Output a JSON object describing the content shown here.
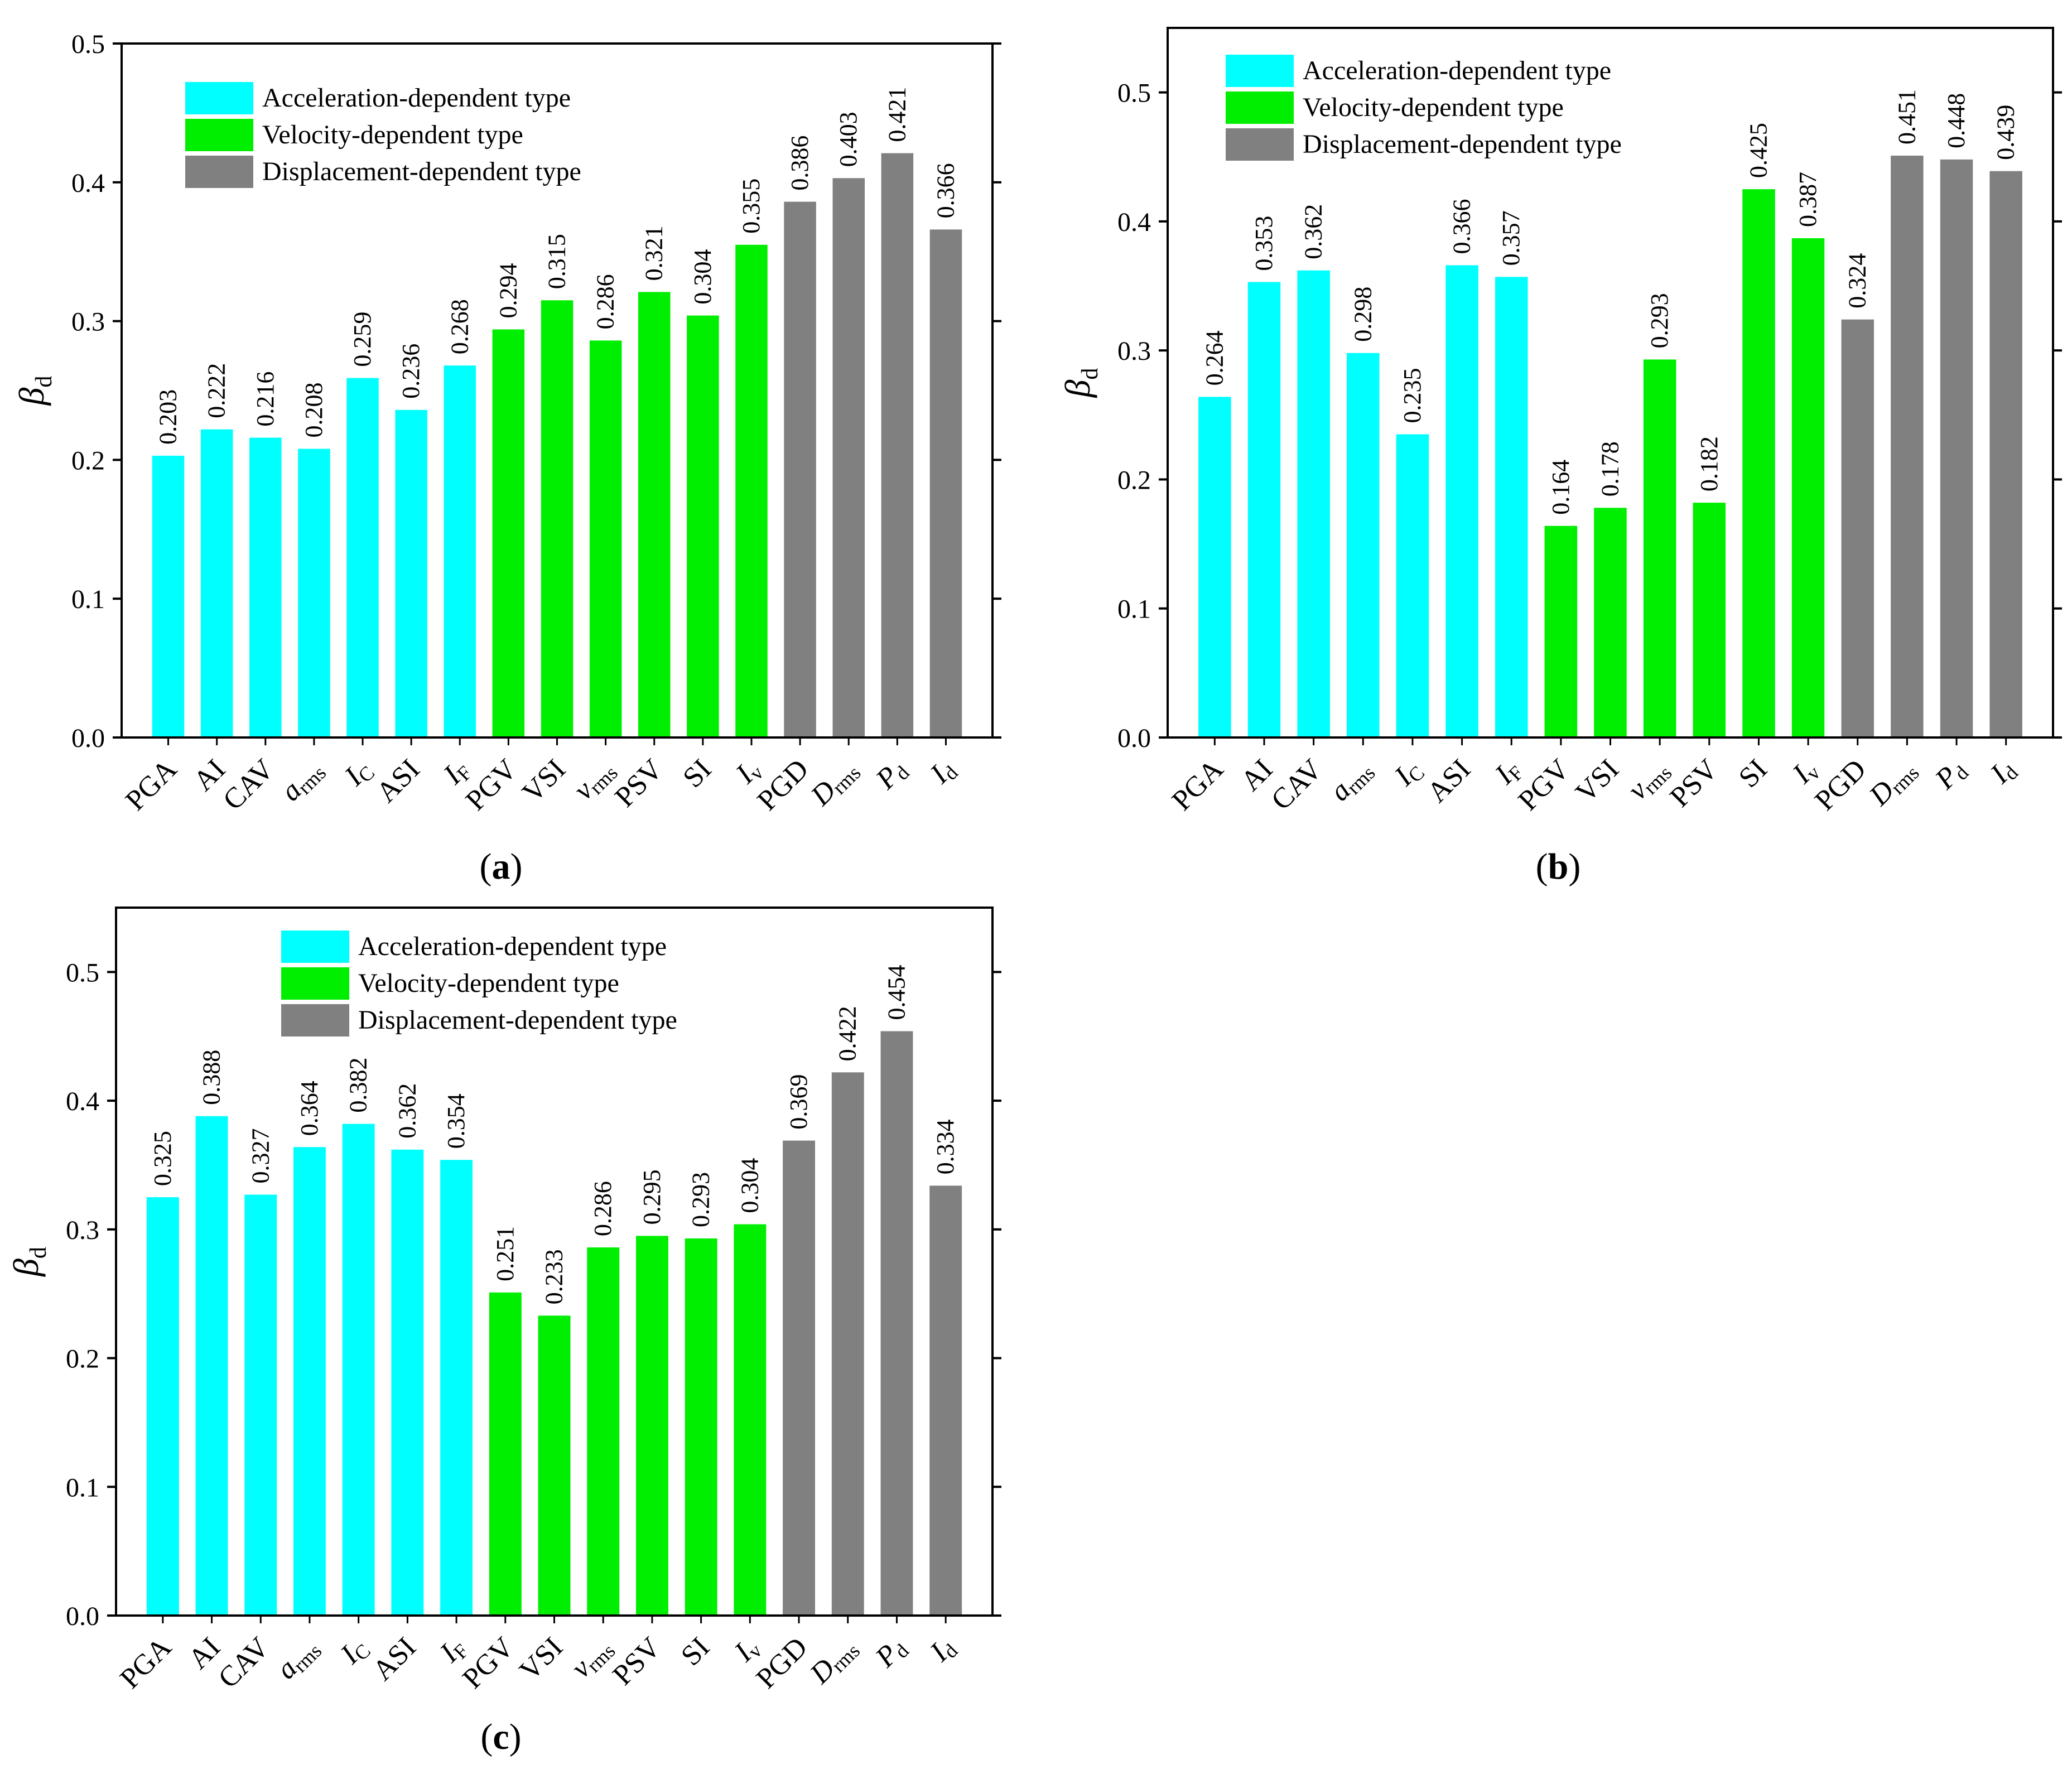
{
  "series_colors": {
    "acceleration": "#00FFFF",
    "velocity": "#00EE00",
    "displacement": "#808080"
  },
  "categories": [
    {
      "main": "PGA",
      "sub": "",
      "italic": false,
      "group": "acceleration"
    },
    {
      "main": "AI",
      "sub": "",
      "italic": false,
      "group": "acceleration"
    },
    {
      "main": "CAV",
      "sub": "",
      "italic": false,
      "group": "acceleration"
    },
    {
      "main": "a",
      "sub": "rms",
      "italic": true,
      "group": "acceleration"
    },
    {
      "main": "I",
      "sub": "C",
      "italic": true,
      "group": "acceleration"
    },
    {
      "main": "ASI",
      "sub": "",
      "italic": false,
      "group": "acceleration"
    },
    {
      "main": "I",
      "sub": "F",
      "italic": true,
      "group": "acceleration"
    },
    {
      "main": "PGV",
      "sub": "",
      "italic": false,
      "group": "velocity"
    },
    {
      "main": "VSI",
      "sub": "",
      "italic": false,
      "group": "velocity"
    },
    {
      "main": "v",
      "sub": "rms",
      "italic": true,
      "group": "velocity"
    },
    {
      "main": "PSV",
      "sub": "",
      "italic": false,
      "group": "velocity"
    },
    {
      "main": "SI",
      "sub": "",
      "italic": false,
      "group": "velocity"
    },
    {
      "main": "I",
      "sub": "v",
      "italic": true,
      "group": "velocity"
    },
    {
      "main": "PGD",
      "sub": "",
      "italic": false,
      "group": "displacement"
    },
    {
      "main": "D",
      "sub": "rms",
      "italic": true,
      "group": "displacement"
    },
    {
      "main": "P",
      "sub": "d",
      "italic": true,
      "group": "displacement"
    },
    {
      "main": "I",
      "sub": "d",
      "italic": true,
      "group": "displacement"
    }
  ],
  "chart_data": [
    {
      "panel": "(a)",
      "panel_letter": "a",
      "type": "bar",
      "ylabel": "βd",
      "ylabel_main": "β",
      "ylabel_sub": "d",
      "ylim": [
        0.0,
        0.5
      ],
      "yticks": [
        "0.0",
        "0.1",
        "0.2",
        "0.3",
        "0.4",
        "0.5"
      ],
      "legend": [
        "Acceleration-dependent type",
        "Velocity-dependent type",
        "Displacement-dependent type"
      ],
      "values": [
        0.203,
        0.222,
        0.216,
        0.208,
        0.259,
        0.236,
        0.268,
        0.294,
        0.315,
        0.286,
        0.321,
        0.304,
        0.355,
        0.386,
        0.403,
        0.421,
        0.366
      ],
      "value_labels": [
        "0.203",
        "0.222",
        "0.216",
        "0.208",
        "0.259",
        "0.236",
        "0.268",
        "0.294",
        "0.315",
        "0.286",
        "0.321",
        "0.304",
        "0.355",
        "0.386",
        "0.403",
        "0.421",
        "0.366"
      ]
    },
    {
      "panel": "(b)",
      "panel_letter": "b",
      "type": "bar",
      "ylabel": "βd",
      "ylabel_main": "β",
      "ylabel_sub": "d",
      "ylim": [
        0.0,
        0.55
      ],
      "yticks": [
        "0.0",
        "0.1",
        "0.2",
        "0.3",
        "0.4",
        "0.5"
      ],
      "legend": [
        "Acceleration-dependent type",
        "Velocity-dependent type",
        "Displacement-dependent type"
      ],
      "values": [
        0.264,
        0.353,
        0.362,
        0.298,
        0.235,
        0.366,
        0.357,
        0.164,
        0.178,
        0.293,
        0.182,
        0.425,
        0.387,
        0.324,
        0.451,
        0.448,
        0.439
      ],
      "value_labels": [
        "0.264",
        "0.353",
        "0.362",
        "0.298",
        "0.235",
        "0.366",
        "0.357",
        "0.164",
        "0.178",
        "0.293",
        "0.182",
        "0.425",
        "0.387",
        "0.324",
        "0.451",
        "0.448",
        "0.439"
      ]
    },
    {
      "panel": "(c)",
      "panel_letter": "c",
      "type": "bar",
      "ylabel": "βd",
      "ylabel_main": "β",
      "ylabel_sub": "d",
      "ylim": [
        0.0,
        0.55
      ],
      "yticks": [
        "0.0",
        "0.1",
        "0.2",
        "0.3",
        "0.4",
        "0.5"
      ],
      "legend": [
        "Acceleration-dependent type",
        "Velocity-dependent type",
        "Displacement-dependent type"
      ],
      "values": [
        0.325,
        0.388,
        0.327,
        0.364,
        0.382,
        0.362,
        0.354,
        0.251,
        0.233,
        0.286,
        0.295,
        0.293,
        0.304,
        0.369,
        0.422,
        0.454,
        0.334
      ],
      "value_labels": [
        "0.325",
        "0.388",
        "0.327",
        "0.364",
        "0.382",
        "0.362",
        "0.354",
        "0.251",
        "0.233",
        "0.286",
        "0.295",
        "0.293",
        "0.304",
        "0.369",
        "0.422",
        "0.454",
        "0.334"
      ]
    }
  ]
}
